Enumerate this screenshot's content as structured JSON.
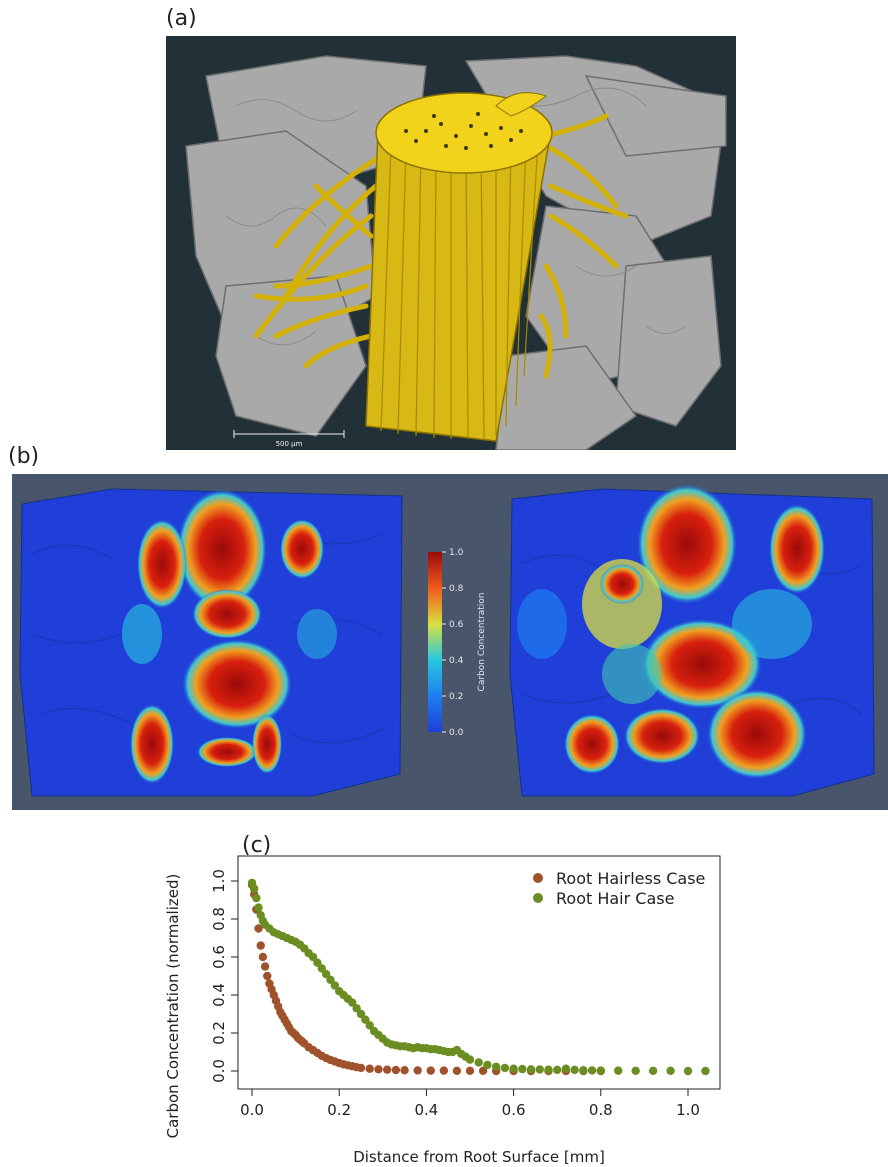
{
  "panels": {
    "a": {
      "label": "(a)",
      "scale_bar": "500 μm"
    },
    "b": {
      "label": "(b)",
      "colorbar": {
        "title": "Carbon Concentration",
        "ticks": [
          "1.0",
          "0.8",
          "0.6",
          "0.4",
          "0.2",
          "0.0"
        ]
      }
    },
    "c": {
      "label": "(c)"
    }
  },
  "colors": {
    "hairless": "#a0522d",
    "hair": "#6b8e23",
    "root": "#e8c51b",
    "soil": "#a9a9a9",
    "background_a": "#223038",
    "background_b": "#48556a"
  },
  "chart_data": {
    "type": "scatter",
    "xlabel": "Distance from Root Surface [mm]",
    "ylabel": "Carbon Concentration (normalized)",
    "xlim": [
      0,
      1.05
    ],
    "ylim": [
      0,
      1.0
    ],
    "xticks": [
      0.0,
      0.2,
      0.4,
      0.6,
      0.8,
      1.0
    ],
    "xtick_labels": [
      "0.0",
      "0.2",
      "0.4",
      "0.6",
      "0.8",
      "1.0"
    ],
    "yticks": [
      0.0,
      0.2,
      0.4,
      0.6,
      0.8,
      1.0
    ],
    "ytick_labels": [
      "0.0",
      "0.2",
      "0.4",
      "0.6",
      "0.8",
      "1.0"
    ],
    "legend_position": "top-right",
    "series": [
      {
        "name": "Root Hairless Case",
        "color": "#a0522d",
        "x": [
          0.0,
          0.005,
          0.01,
          0.015,
          0.02,
          0.025,
          0.03,
          0.035,
          0.04,
          0.045,
          0.05,
          0.055,
          0.06,
          0.065,
          0.07,
          0.075,
          0.08,
          0.085,
          0.09,
          0.095,
          0.1,
          0.105,
          0.11,
          0.115,
          0.12,
          0.13,
          0.14,
          0.15,
          0.16,
          0.17,
          0.18,
          0.19,
          0.2,
          0.21,
          0.22,
          0.23,
          0.24,
          0.25,
          0.27,
          0.29,
          0.31,
          0.33,
          0.35,
          0.38,
          0.41,
          0.44,
          0.47,
          0.5,
          0.53,
          0.56,
          0.6,
          0.64,
          0.68,
          0.72,
          0.76,
          0.8
        ],
        "y": [
          0.98,
          0.93,
          0.85,
          0.75,
          0.66,
          0.6,
          0.55,
          0.5,
          0.46,
          0.43,
          0.4,
          0.37,
          0.34,
          0.31,
          0.29,
          0.27,
          0.25,
          0.23,
          0.21,
          0.2,
          0.19,
          0.175,
          0.165,
          0.155,
          0.145,
          0.125,
          0.11,
          0.095,
          0.08,
          0.068,
          0.058,
          0.05,
          0.042,
          0.035,
          0.03,
          0.025,
          0.02,
          0.016,
          0.012,
          0.009,
          0.007,
          0.005,
          0.004,
          0.003,
          0.002,
          0.002,
          0.001,
          0.001,
          0.001,
          0.0,
          0.0,
          0.0,
          0.0,
          0.0,
          0.0,
          0.0
        ]
      },
      {
        "name": "Root Hair Case",
        "color": "#6b8e23",
        "x": [
          0.0,
          0.005,
          0.01,
          0.015,
          0.02,
          0.025,
          0.03,
          0.04,
          0.05,
          0.06,
          0.07,
          0.08,
          0.09,
          0.1,
          0.11,
          0.12,
          0.13,
          0.14,
          0.15,
          0.16,
          0.17,
          0.18,
          0.19,
          0.2,
          0.21,
          0.22,
          0.23,
          0.24,
          0.25,
          0.26,
          0.27,
          0.28,
          0.29,
          0.3,
          0.31,
          0.32,
          0.33,
          0.34,
          0.35,
          0.36,
          0.37,
          0.38,
          0.39,
          0.4,
          0.41,
          0.42,
          0.43,
          0.44,
          0.45,
          0.46,
          0.47,
          0.48,
          0.49,
          0.5,
          0.52,
          0.54,
          0.56,
          0.58,
          0.6,
          0.62,
          0.64,
          0.66,
          0.68,
          0.7,
          0.72,
          0.74,
          0.76,
          0.78,
          0.8,
          0.84,
          0.88,
          0.92,
          0.96,
          1.0,
          1.04
        ],
        "y": [
          0.99,
          0.96,
          0.91,
          0.86,
          0.82,
          0.79,
          0.77,
          0.75,
          0.73,
          0.72,
          0.71,
          0.7,
          0.69,
          0.68,
          0.665,
          0.645,
          0.62,
          0.6,
          0.57,
          0.54,
          0.51,
          0.48,
          0.45,
          0.42,
          0.4,
          0.38,
          0.36,
          0.33,
          0.3,
          0.27,
          0.24,
          0.21,
          0.19,
          0.17,
          0.15,
          0.14,
          0.135,
          0.13,
          0.13,
          0.125,
          0.12,
          0.125,
          0.12,
          0.12,
          0.115,
          0.115,
          0.11,
          0.105,
          0.1,
          0.1,
          0.11,
          0.09,
          0.075,
          0.06,
          0.045,
          0.032,
          0.022,
          0.016,
          0.012,
          0.01,
          0.009,
          0.008,
          0.007,
          0.006,
          0.012,
          0.006,
          0.004,
          0.003,
          0.002,
          0.002,
          0.001,
          0.001,
          0.001,
          0.0,
          0.0
        ]
      }
    ]
  }
}
